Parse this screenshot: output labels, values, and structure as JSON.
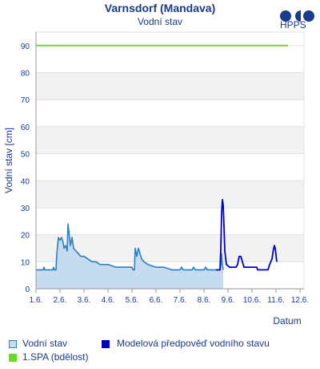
{
  "header": {
    "title": "Varnsdorf (Mandava)",
    "subtitle": "Vodní stav",
    "logo_text": "HPPS"
  },
  "legend": {
    "observed_label": "Vodní stav",
    "forecast_label": "Modelová předpověď vodního stavu",
    "spa_label": "1.SPA (bdělost)"
  },
  "colors": {
    "observed_line": "#2f7fc0",
    "observed_fill": "#c5dcf0",
    "forecast_line": "#0000cc",
    "spa_line": "#66dd22",
    "band": "#f2f2f2",
    "text": "#1a3a8c"
  },
  "chart_data": {
    "type": "line",
    "title": "Varnsdorf (Mandava)",
    "subtitle": "Vodní stav",
    "xlabel": "Datum",
    "ylabel": "Vodní stav [cm]",
    "xlim": [
      0,
      33.5
    ],
    "ylim": [
      0,
      95
    ],
    "x_tick_labels": [
      "1.6.",
      "2.6.",
      "3.6.",
      "4.6.",
      "5.6.",
      "6.6.",
      "7.6.",
      "8.6.",
      "9.6.",
      "10.6.",
      "11.6.",
      "12.6."
    ],
    "x_tick_values": [
      0,
      3,
      6,
      9,
      12,
      15,
      18,
      21,
      24,
      27,
      30,
      33
    ],
    "y_ticks": [
      0,
      10,
      20,
      30,
      40,
      50,
      60,
      70,
      80,
      90
    ],
    "grid": true,
    "series": [
      {
        "name": "Vodní stav",
        "type": "area",
        "points": [
          [
            0,
            7
          ],
          [
            0.9,
            7
          ],
          [
            1.0,
            8
          ],
          [
            1.1,
            7
          ],
          [
            2.1,
            7
          ],
          [
            2.2,
            8
          ],
          [
            2.3,
            7
          ],
          [
            2.5,
            7
          ],
          [
            2.6,
            13
          ],
          [
            2.8,
            19
          ],
          [
            3.0,
            18
          ],
          [
            3.2,
            19
          ],
          [
            3.4,
            17
          ],
          [
            3.5,
            15
          ],
          [
            3.7,
            16
          ],
          [
            3.9,
            14
          ],
          [
            4.0,
            24
          ],
          [
            4.15,
            20
          ],
          [
            4.3,
            16
          ],
          [
            4.5,
            19
          ],
          [
            4.7,
            15
          ],
          [
            5.0,
            14
          ],
          [
            5.3,
            13
          ],
          [
            5.6,
            12
          ],
          [
            6.0,
            12
          ],
          [
            6.5,
            11
          ],
          [
            7.0,
            10
          ],
          [
            7.5,
            10
          ],
          [
            8.0,
            9
          ],
          [
            9.0,
            9
          ],
          [
            10.0,
            8
          ],
          [
            11.0,
            8
          ],
          [
            11.7,
            8
          ],
          [
            12.0,
            8
          ],
          [
            12.1,
            7
          ],
          [
            12.3,
            7
          ],
          [
            12.4,
            15
          ],
          [
            12.6,
            12
          ],
          [
            12.8,
            15
          ],
          [
            13.0,
            13
          ],
          [
            13.2,
            11
          ],
          [
            13.5,
            10
          ],
          [
            14.0,
            9
          ],
          [
            15.0,
            8
          ],
          [
            16.0,
            8
          ],
          [
            17.0,
            7
          ],
          [
            18.0,
            7
          ],
          [
            18.2,
            8
          ],
          [
            18.4,
            7
          ],
          [
            19.5,
            7
          ],
          [
            19.7,
            8
          ],
          [
            19.9,
            7
          ],
          [
            21.0,
            7
          ],
          [
            21.2,
            8
          ],
          [
            21.4,
            7
          ],
          [
            22.5,
            7
          ],
          [
            23.0,
            7
          ],
          [
            23.1,
            9
          ],
          [
            23.2,
            13
          ],
          [
            23.3,
            9
          ],
          [
            23.4,
            7
          ]
        ]
      },
      {
        "name": "Modelová předpověď vodního stavu",
        "type": "line",
        "points": [
          [
            22.5,
            7
          ],
          [
            23.0,
            7
          ],
          [
            23.1,
            15
          ],
          [
            23.2,
            28
          ],
          [
            23.3,
            33
          ],
          [
            23.4,
            31
          ],
          [
            23.5,
            23
          ],
          [
            23.6,
            14
          ],
          [
            23.8,
            9
          ],
          [
            24.2,
            8
          ],
          [
            24.6,
            8
          ],
          [
            25.0,
            8
          ],
          [
            25.2,
            9
          ],
          [
            25.4,
            12
          ],
          [
            25.6,
            12
          ],
          [
            25.8,
            10
          ],
          [
            26.0,
            8
          ],
          [
            27.0,
            8
          ],
          [
            27.6,
            8
          ],
          [
            27.7,
            7
          ],
          [
            28.5,
            7
          ],
          [
            29.0,
            7
          ],
          [
            29.2,
            9
          ],
          [
            29.5,
            11
          ],
          [
            29.7,
            15
          ],
          [
            29.8,
            16
          ],
          [
            29.9,
            15
          ],
          [
            30.1,
            10
          ]
        ]
      },
      {
        "name": "1.SPA (bdělost)",
        "type": "line",
        "points": [
          [
            0,
            90
          ],
          [
            31.5,
            90
          ]
        ]
      }
    ]
  }
}
